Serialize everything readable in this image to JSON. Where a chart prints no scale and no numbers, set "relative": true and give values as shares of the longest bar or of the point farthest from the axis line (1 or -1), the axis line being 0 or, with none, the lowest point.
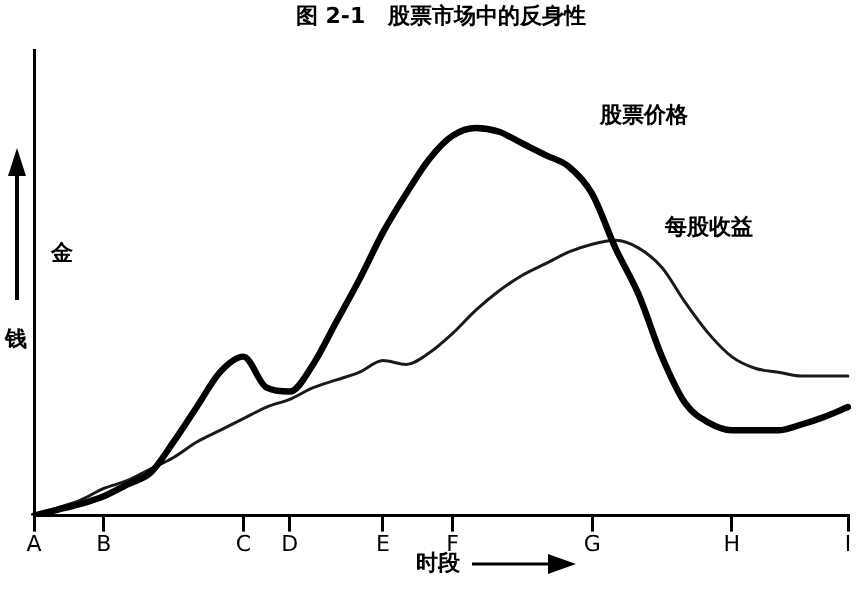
{
  "chart_data": {
    "type": "line",
    "title": "图 2-1   股票市场中的反身性",
    "xlabel": "时段",
    "ylabel": "钱",
    "annotations": [
      "金"
    ],
    "relative": true,
    "categories": [
      "A",
      null,
      null,
      "B",
      null,
      null,
      null,
      null,
      null,
      "C",
      null,
      "D",
      null,
      null,
      null,
      "E",
      null,
      null,
      "F",
      null,
      null,
      null,
      null,
      null,
      "G",
      null,
      null,
      null,
      null,
      null,
      "H",
      null,
      null,
      null,
      null,
      "I"
    ],
    "grid": false,
    "legend": false,
    "marker": "none",
    "line_style": "solid",
    "series": [
      {
        "name": "股票价格",
        "color": "#000000",
        "values": [
          0,
          0.015,
          0.03,
          0.05,
          0.08,
          0.11,
          0.19,
          0.28,
          0.37,
          0.41,
          0.33,
          0.32,
          0.39,
          0.5,
          0.61,
          0.73,
          0.83,
          0.92,
          0.98,
          1,
          0.99,
          0.96,
          0.93,
          0.9,
          0.83,
          0.69,
          0.57,
          0.41,
          0.29,
          0.24,
          0.22,
          0.22,
          0.22,
          0.235,
          0.255,
          0.28
        ]
      },
      {
        "name": "每股收益",
        "color": "#1a1a1a",
        "values": [
          0,
          0.02,
          0.04,
          0.07,
          0.09,
          0.12,
          0.15,
          0.19,
          0.22,
          0.25,
          0.28,
          0.3,
          0.33,
          0.35,
          0.37,
          0.4,
          0.39,
          0.42,
          0.47,
          0.53,
          0.58,
          0.62,
          0.65,
          0.68,
          0.7,
          0.71,
          0.69,
          0.64,
          0.55,
          0.47,
          0.41,
          0.38,
          0.37,
          0.36,
          0.36,
          0.36
        ]
      }
    ]
  }
}
